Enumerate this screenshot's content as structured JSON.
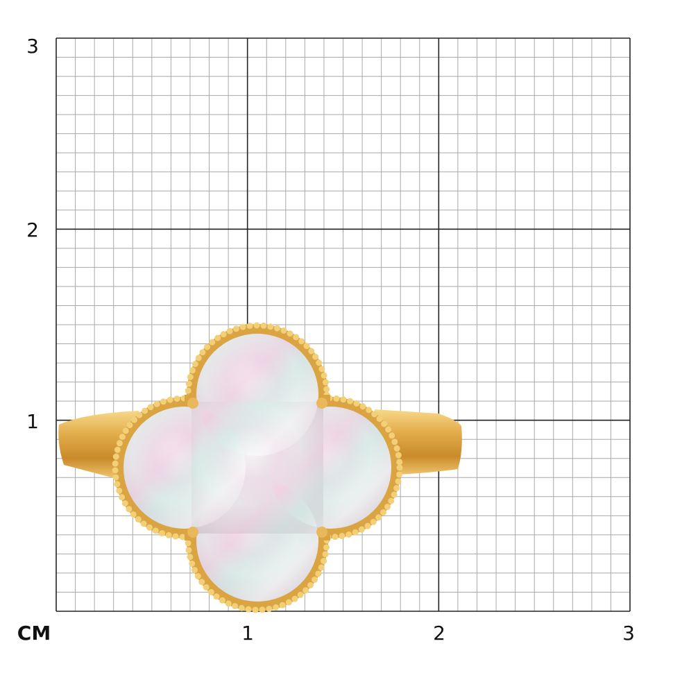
{
  "scale": {
    "unit_label": "CM",
    "y_labels": [
      "3",
      "2",
      "1"
    ],
    "x_labels": [
      "1",
      "2",
      "3"
    ],
    "range_cm": [
      0,
      3
    ],
    "minor_divisions_per_cm": 10
  },
  "product": {
    "type": "clover ring",
    "metal_color": "#d9a441",
    "stone": "mother-of-pearl"
  },
  "colors": {
    "major_grid": "#222222",
    "minor_grid": "#a8a8a8"
  }
}
